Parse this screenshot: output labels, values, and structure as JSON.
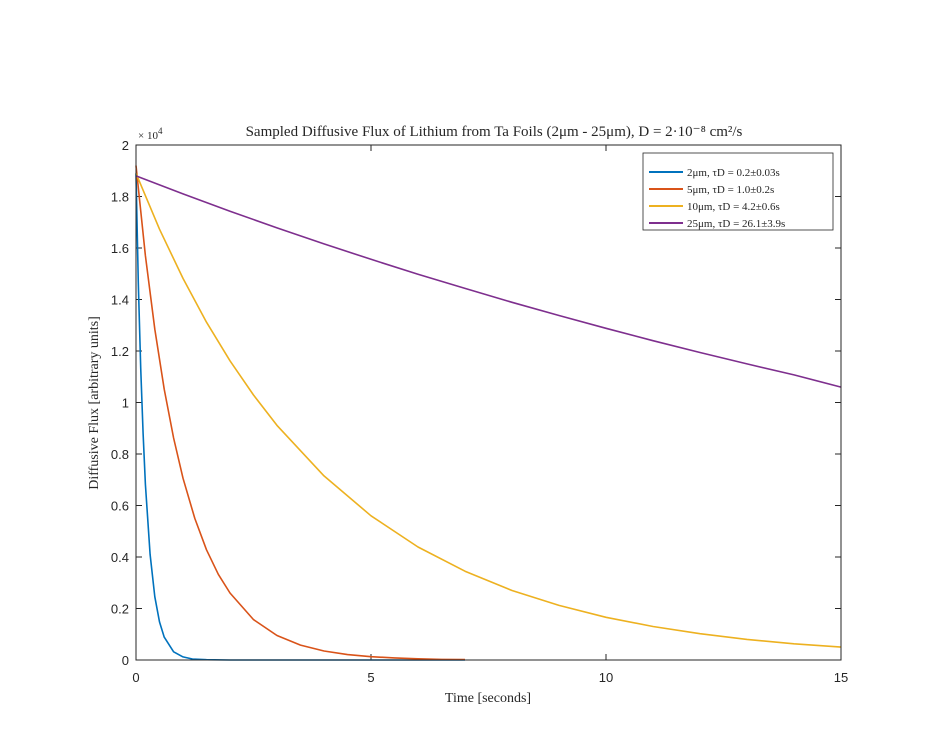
{
  "chart_data": {
    "type": "line",
    "title": "Sampled Diffusive Flux of Lithium from Ta Foils (2μm - 25μm), D = 2·10⁻⁸ cm²/s",
    "xlabel": "Time [seconds]",
    "ylabel": "Diffusive Flux [arbitrary units]",
    "xlim": [
      0,
      15
    ],
    "ylim": [
      0,
      20000
    ],
    "x_ticks": [
      0,
      5,
      10,
      15
    ],
    "y_tick_labels": [
      "0",
      "0.2",
      "0.4",
      "0.6",
      "0.8",
      "1",
      "1.2",
      "1.4",
      "1.6",
      "1.8",
      "2"
    ],
    "y_exponent_base": "× 10",
    "y_exponent_power": "4",
    "grid": false,
    "legend_position": "top-right",
    "series": [
      {
        "name": "2μm, τD = 0.2±0.03s",
        "color": "#0072BD",
        "x": [
          0,
          0.05,
          0.1,
          0.15,
          0.2,
          0.3,
          0.4,
          0.5,
          0.6,
          0.8,
          1.0,
          1.2,
          1.5,
          2,
          3,
          4,
          5,
          6,
          7
        ],
        "y": [
          18900,
          14650,
          11350,
          8800,
          6820,
          4100,
          2460,
          1480,
          890,
          320,
          120,
          40,
          10,
          0,
          0,
          0,
          0,
          0,
          0
        ]
      },
      {
        "name": "5μm, τD = 1.0±0.2s",
        "color": "#D95319",
        "x": [
          0,
          0.2,
          0.4,
          0.6,
          0.8,
          1.0,
          1.25,
          1.5,
          1.75,
          2.0,
          2.5,
          3.0,
          3.5,
          4.0,
          4.5,
          5.0,
          5.5,
          6.0,
          6.5,
          7.0
        ],
        "y": [
          19200,
          15700,
          12850,
          10520,
          8620,
          7060,
          5500,
          4280,
          3330,
          2600,
          1570,
          950,
          580,
          350,
          210,
          130,
          80,
          45,
          25,
          15
        ]
      },
      {
        "name": "10μm, τD = 4.2±0.6s",
        "color": "#EDB120",
        "x": [
          0,
          0.5,
          1,
          1.5,
          2,
          2.5,
          3,
          4,
          5,
          6,
          7,
          8,
          9,
          10,
          11,
          12,
          13,
          14,
          15
        ],
        "y": [
          18900,
          16730,
          14820,
          13120,
          11620,
          10290,
          9110,
          7150,
          5600,
          4390,
          3450,
          2700,
          2120,
          1660,
          1300,
          1020,
          800,
          630,
          500
        ]
      },
      {
        "name": "25μm, τD = 26.1±3.9s",
        "color": "#7E2F8E",
        "x": [
          0,
          1,
          2,
          3,
          4,
          5,
          6,
          7,
          8,
          9,
          10,
          11,
          12,
          13,
          14,
          15
        ],
        "y": [
          18800,
          18100,
          17430,
          16780,
          16160,
          15560,
          14980,
          14430,
          13890,
          13380,
          12880,
          12400,
          11940,
          11500,
          11070,
          10600
        ]
      }
    ]
  }
}
